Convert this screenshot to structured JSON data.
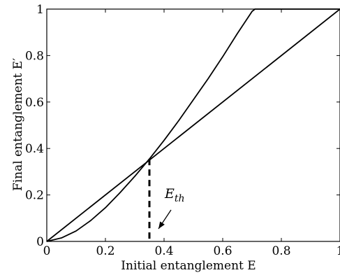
{
  "chart_data": {
    "type": "line",
    "title": "",
    "xlabel": "Initial entanglement E",
    "ylabel": "Final entanglement E′",
    "xlim": [
      0,
      1
    ],
    "ylim": [
      0,
      1
    ],
    "xticks": [
      0,
      0.2,
      0.4,
      0.6,
      0.8,
      1
    ],
    "yticks": [
      0,
      0.2,
      0.4,
      0.6,
      0.8,
      1
    ],
    "xtick_labels": [
      "0",
      "0.2",
      "0.4",
      "0.6",
      "0.8",
      "1"
    ],
    "ytick_labels": [
      "0",
      "0.2",
      "0.4",
      "0.6",
      "0.8",
      "1"
    ],
    "grid": false,
    "series": [
      {
        "x": [
          0,
          1
        ],
        "y": [
          0,
          1
        ]
      },
      {
        "x": [
          0,
          0.05,
          0.1,
          0.15,
          0.2,
          0.25,
          0.3,
          0.35,
          0.4,
          0.45,
          0.5,
          0.55,
          0.6,
          0.65,
          0.7,
          0.71,
          0.8,
          0.9,
          1.0
        ],
        "y": [
          0,
          0.015,
          0.045,
          0.09,
          0.145,
          0.21,
          0.28,
          0.355,
          0.435,
          0.52,
          0.61,
          0.7,
          0.795,
          0.895,
          0.99,
          1.0,
          1.0,
          1.0,
          1.0
        ]
      }
    ],
    "threshold": {
      "x": 0.35,
      "y": 0.355,
      "label_main": "E",
      "label_sub": "th"
    },
    "color": "#000000"
  }
}
